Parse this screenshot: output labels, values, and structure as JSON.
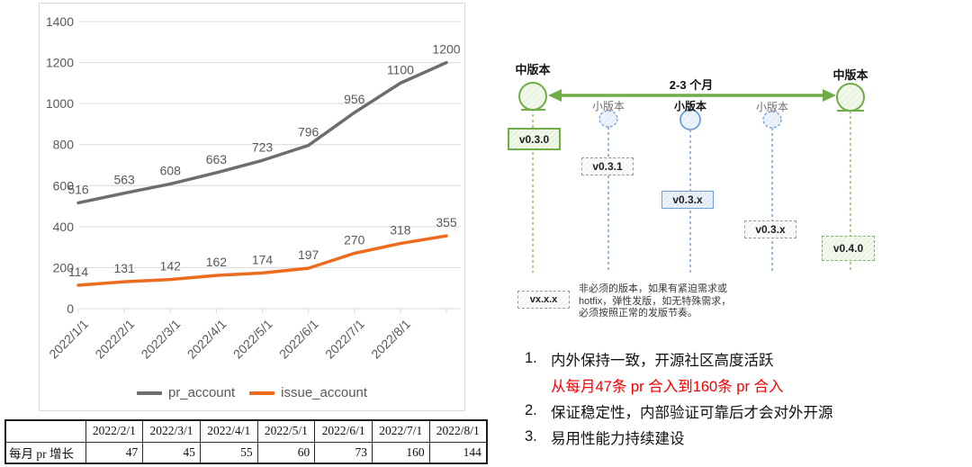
{
  "chart_data": {
    "type": "line",
    "title": "",
    "xlabel": "",
    "ylabel": "",
    "categories": [
      "2022/1/1",
      "2022/2/1",
      "2022/3/1",
      "2022/4/1",
      "2022/5/1",
      "2022/6/1",
      "2022/7/1",
      "2022/8/1",
      ""
    ],
    "series": [
      {
        "name": "pr_account",
        "color": "#6d6d6d",
        "values": [
          516,
          563,
          608,
          663,
          723,
          796,
          956,
          1100,
          1200
        ]
      },
      {
        "name": "issue_account",
        "color": "#ed6b1e",
        "values": [
          114,
          131,
          142,
          162,
          174,
          197,
          270,
          318,
          355
        ]
      }
    ],
    "ylim": [
      0,
      1400
    ],
    "ytick_step": 200,
    "grid": true,
    "data_labels": true,
    "legend_position": "bottom"
  },
  "table": {
    "headers": [
      "",
      "2022/2/1",
      "2022/3/1",
      "2022/4/1",
      "2022/5/1",
      "2022/6/1",
      "2022/7/1",
      "2022/8/1"
    ],
    "rows": [
      {
        "label": "每月 pr 增长",
        "values": [
          47,
          45,
          55,
          60,
          73,
          160,
          144
        ]
      }
    ]
  },
  "diagram": {
    "major_release_left": "中版本",
    "major_release_right": "中版本",
    "interval_label": "2-3 个月",
    "minor_release_labels": [
      "小版本",
      "小版本",
      "小版本"
    ],
    "version_boxes": {
      "v030": "v0.3.0",
      "v031": "v0.3.1",
      "v03x_blue": "v0.3.x",
      "v03x_gray": "v0.3.x",
      "v040": "v0.4.0",
      "vxxx": "vx.x.x"
    },
    "note_lines": [
      "非必须的版本，如果有紧迫需求或",
      "hotfix，弹性发版，如无特殊需求，",
      "必须按照正常的发版节奏。"
    ]
  },
  "notes": {
    "items": [
      {
        "number": "1.",
        "text": "内外保持一致，开源社区高度活跃"
      },
      {
        "number": "",
        "text": "从每月47条 pr 合入到160条 pr 合入",
        "highlight": true
      },
      {
        "number": "2.",
        "text": "保证稳定性，内部验证可靠后才会对外开源"
      },
      {
        "number": "3.",
        "text": "易用性能力持续建设"
      }
    ]
  },
  "colors": {
    "pr_line": "#6d6d6d",
    "issue_line": "#ed6b1e",
    "grid": "#d9d9d9",
    "axis_text": "#595959",
    "green": "#70ad47",
    "blue": "#6f9fd8",
    "highlight_red": "#f70000"
  }
}
